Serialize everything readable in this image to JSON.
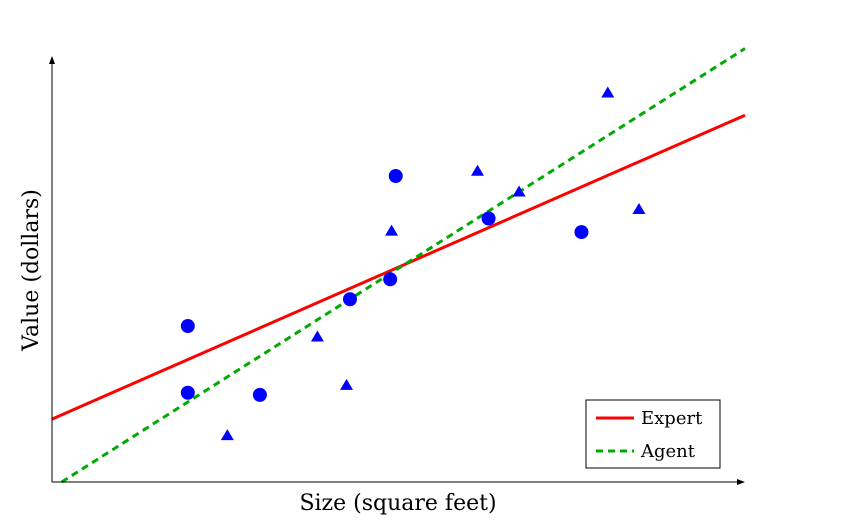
{
  "chart_data": {
    "type": "scatter",
    "xlabel": "Size (square feet)",
    "ylabel": "Value (dollars)",
    "xlim": [
      0,
      10
    ],
    "ylim": [
      0,
      10
    ],
    "grid": false,
    "legend_position": "bottom-right",
    "colors": {
      "points": "#0000ff",
      "expert": "#ff0000",
      "agent": "#00aa00"
    },
    "point_series": [
      {
        "marker": "circle",
        "points": [
          [
            1.96,
            3.67
          ],
          [
            1.96,
            2.1
          ],
          [
            3.0,
            2.05
          ],
          [
            4.3,
            4.3
          ],
          [
            4.88,
            4.77
          ],
          [
            4.96,
            7.2
          ],
          [
            6.3,
            6.2
          ],
          [
            7.64,
            5.88
          ]
        ]
      },
      {
        "marker": "triangle",
        "points": [
          [
            2.53,
            1.09
          ],
          [
            3.83,
            3.41
          ],
          [
            4.25,
            2.27
          ],
          [
            4.9,
            5.9
          ],
          [
            6.14,
            7.31
          ],
          [
            6.74,
            6.82
          ],
          [
            8.02,
            9.15
          ],
          [
            8.47,
            6.41
          ]
        ]
      }
    ],
    "line_series": [
      {
        "name": "Expert",
        "style": "solid",
        "points": [
          [
            0,
            1.48
          ],
          [
            10,
            8.63
          ]
        ]
      },
      {
        "name": "Agent",
        "style": "dashed",
        "points": [
          [
            0.14,
            0
          ],
          [
            10,
            10.2
          ]
        ]
      }
    ]
  }
}
